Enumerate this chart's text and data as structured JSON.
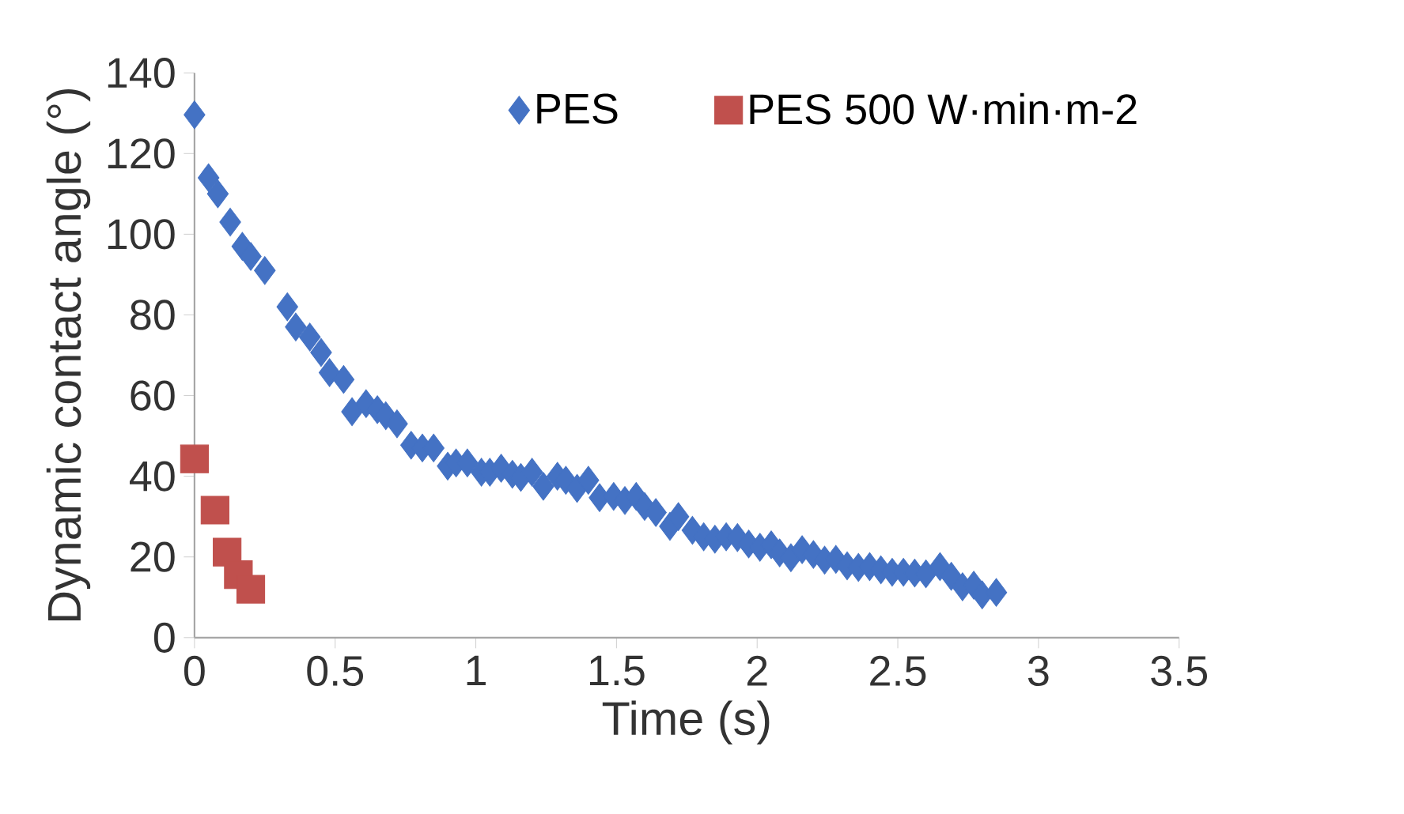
{
  "chart_data": {
    "type": "scatter",
    "xlabel": "Time (s)",
    "ylabel": "Dynamic contact angle (°)",
    "xlim": [
      0,
      3.5
    ],
    "ylim": [
      0,
      140
    ],
    "xticks": [
      0,
      0.5,
      1,
      1.5,
      2,
      2.5,
      3,
      3.5
    ],
    "yticks": [
      0,
      20,
      40,
      60,
      80,
      100,
      120,
      140
    ],
    "legend": "top right",
    "grid": false,
    "series": [
      {
        "name": "PES",
        "color": "#4472c4",
        "marker": "diamond",
        "x": [
          0,
          0.05,
          0.083,
          0.127,
          0.17,
          0.2,
          0.25,
          0.33,
          0.36,
          0.41,
          0.45,
          0.48,
          0.53,
          0.56,
          0.61,
          0.65,
          0.68,
          0.72,
          0.77,
          0.81,
          0.85,
          0.9,
          0.93,
          0.97,
          1.02,
          1.05,
          1.09,
          1.13,
          1.16,
          1.2,
          1.24,
          1.29,
          1.32,
          1.36,
          1.4,
          1.44,
          1.49,
          1.53,
          1.57,
          1.6,
          1.64,
          1.69,
          1.72,
          1.77,
          1.81,
          1.85,
          1.89,
          1.93,
          1.97,
          2.01,
          2.05,
          2.08,
          2.12,
          2.16,
          2.2,
          2.24,
          2.28,
          2.32,
          2.36,
          2.4,
          2.44,
          2.48,
          2.52,
          2.56,
          2.6,
          2.65,
          2.69,
          2.73,
          2.77,
          2.8,
          2.85
        ],
        "values": [
          129.6,
          114,
          110,
          103,
          97,
          94.5,
          91,
          82,
          77,
          74.5,
          70.7,
          65.7,
          64,
          56,
          58,
          56.5,
          55,
          53,
          47.7,
          47,
          47,
          42.5,
          43.3,
          43.3,
          41,
          41,
          42,
          40.5,
          39.7,
          41,
          37.5,
          40,
          39,
          37,
          39,
          34.7,
          35,
          34,
          35,
          32.5,
          31,
          27.6,
          30,
          26.6,
          25,
          24.4,
          25,
          24.8,
          23.2,
          22.4,
          23,
          21,
          19.8,
          21.8,
          20.6,
          19.2,
          19.4,
          17.8,
          17.4,
          17.6,
          16.8,
          16.2,
          16.2,
          16,
          15.8,
          17.6,
          15.2,
          12.6,
          13,
          10.6,
          11.2
        ]
      },
      {
        "name": "PES 500 W·min·m-2",
        "color": "#c0504d",
        "marker": "square",
        "x": [
          0,
          0.073,
          0.116,
          0.156,
          0.2
        ],
        "values": [
          44.3,
          31.6,
          21.2,
          15.6,
          12
        ]
      }
    ]
  }
}
